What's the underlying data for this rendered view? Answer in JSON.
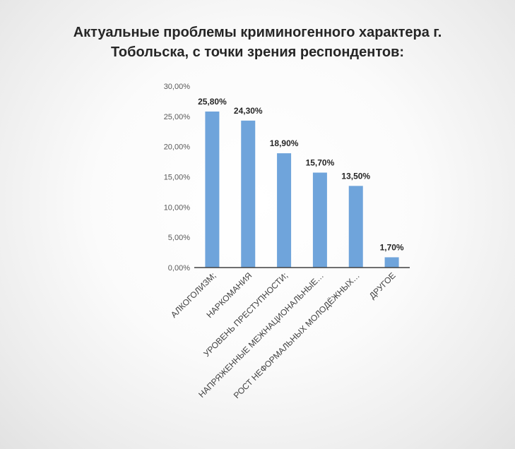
{
  "chart_data": {
    "type": "bar",
    "title": "Актуальные проблемы криминогенного характера г. Тобольска, с точки зрения респондентов:",
    "title_lines": [
      "Актуальные проблемы криминогенного характера г.",
      "Тобольска, с точки зрения респондентов:"
    ],
    "categories": [
      "АЛКОГОЛИЗМ;",
      "НАРКОМАНИЯ",
      "УРОВЕНЬ ПРЕСТУПНОСТИ;",
      "НАПРЯЖЕННЫЕ МЕЖНАЦИОНАЛЬНЫЕ…",
      "РОСТ НЕФОРМАЛЬНЫХ МОЛОДЁЖНЫХ…",
      "ДРУГОЕ"
    ],
    "values": [
      25.8,
      24.3,
      18.9,
      15.7,
      13.5,
      1.7
    ],
    "data_labels": [
      "25,80%",
      "24,30%",
      "18,90%",
      "15,70%",
      "13,50%",
      "1,70%"
    ],
    "yticks": [
      "0,00%",
      "5,00%",
      "10,00%",
      "15,00%",
      "20,00%",
      "25,00%",
      "30,00%"
    ],
    "ylim": [
      0,
      30
    ],
    "xlabel": "",
    "ylabel": "",
    "grid": false,
    "bar_color": "#6fa4db",
    "axis_color": "#404040"
  }
}
